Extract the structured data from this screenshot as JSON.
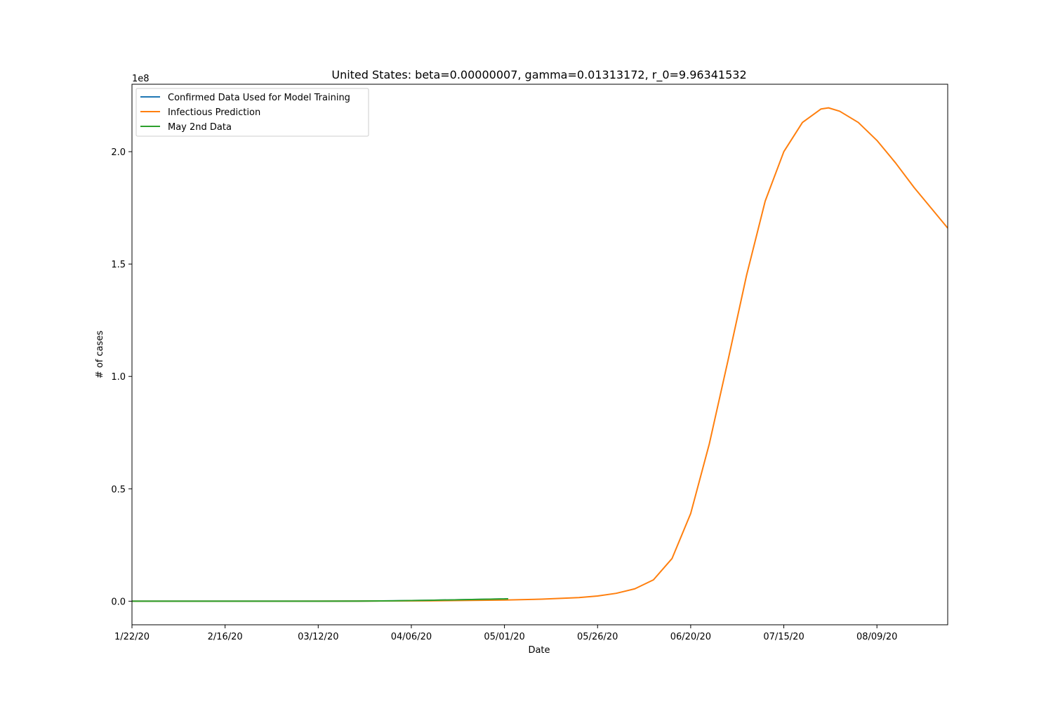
{
  "chart_data": {
    "type": "line",
    "title": "United States: beta=0.00000007, gamma=0.01313172, r_0=9.96341532",
    "xlabel": "Date",
    "ylabel": "# of cases",
    "y_offset_label": "1e8",
    "y_scale_factor": 100000000,
    "x_start_date": "2020-01-22",
    "xlim_days": [
      0,
      219
    ],
    "ylim": [
      -10500000,
      230000000
    ],
    "x_ticks": [
      {
        "day": 0,
        "label": "1/22/20"
      },
      {
        "day": 25,
        "label": "2/16/20"
      },
      {
        "day": 50,
        "label": "03/12/20"
      },
      {
        "day": 75,
        "label": "04/06/20"
      },
      {
        "day": 100,
        "label": "05/01/20"
      },
      {
        "day": 125,
        "label": "05/26/20"
      },
      {
        "day": 150,
        "label": "06/20/20"
      },
      {
        "day": 175,
        "label": "07/15/20"
      },
      {
        "day": 200,
        "label": "08/09/20"
      }
    ],
    "y_ticks": [
      {
        "value": 0,
        "label": "0.0"
      },
      {
        "value": 50000000,
        "label": "0.5"
      },
      {
        "value": 100000000,
        "label": "1.0"
      },
      {
        "value": 150000000,
        "label": "1.5"
      },
      {
        "value": 200000000,
        "label": "2.0"
      }
    ],
    "grid": false,
    "legend_position": "top-left",
    "series": [
      {
        "name": "Confirmed Data Used for Model Training",
        "color": "#1f77b4",
        "points": [
          [
            0,
            0
          ],
          [
            20,
            10
          ],
          [
            40,
            60
          ],
          [
            50,
            1500
          ],
          [
            60,
            30000
          ],
          [
            70,
            150000
          ],
          [
            80,
            400000
          ],
          [
            90,
            700000
          ],
          [
            100,
            1000000
          ],
          [
            101,
            1070000
          ]
        ]
      },
      {
        "name": "Infectious Prediction",
        "color": "#ff7f0e",
        "points": [
          [
            0,
            10
          ],
          [
            40,
            8000
          ],
          [
            60,
            40000
          ],
          [
            80,
            150000
          ],
          [
            100,
            500000
          ],
          [
            110,
            900000
          ],
          [
            120,
            1600000
          ],
          [
            125,
            2300000
          ],
          [
            130,
            3500000
          ],
          [
            135,
            5500000
          ],
          [
            140,
            9500000
          ],
          [
            145,
            19000000
          ],
          [
            150,
            39000000
          ],
          [
            155,
            70000000
          ],
          [
            160,
            107000000
          ],
          [
            165,
            145000000
          ],
          [
            170,
            178000000
          ],
          [
            175,
            200000000
          ],
          [
            180,
            213000000
          ],
          [
            185,
            219000000
          ],
          [
            187,
            219500000
          ],
          [
            190,
            218000000
          ],
          [
            195,
            213000000
          ],
          [
            200,
            205000000
          ],
          [
            205,
            195000000
          ],
          [
            210,
            184000000
          ],
          [
            215,
            174000000
          ],
          [
            219,
            166000000
          ]
        ]
      },
      {
        "name": "May 2nd Data",
        "color": "#2ca02c",
        "points": [
          [
            0,
            0
          ],
          [
            20,
            10
          ],
          [
            40,
            60
          ],
          [
            50,
            1500
          ],
          [
            60,
            30000
          ],
          [
            70,
            150000
          ],
          [
            80,
            400000
          ],
          [
            90,
            700000
          ],
          [
            100,
            1000000
          ],
          [
            101,
            1070000
          ]
        ]
      }
    ]
  }
}
